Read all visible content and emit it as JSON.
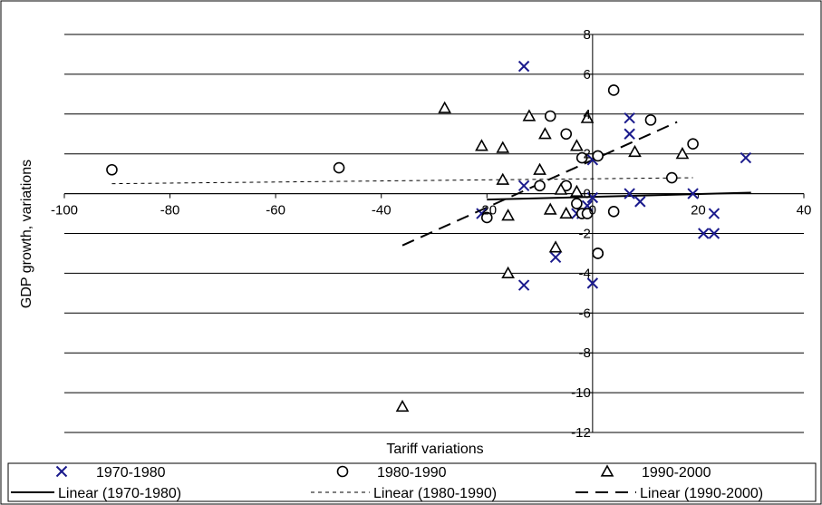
{
  "chart_data": {
    "type": "scatter",
    "xlabel": "Tariff variations",
    "ylabel": "GDP growth, variations",
    "xlim": [
      -100,
      40
    ],
    "ylim": [
      -12,
      8
    ],
    "x_ticks": [
      -100,
      -80,
      -60,
      -40,
      -20,
      0,
      20,
      40
    ],
    "y_ticks": [
      -12,
      -10,
      -8,
      -6,
      -4,
      -2,
      0,
      2,
      4,
      6,
      8
    ],
    "x_tick_labels": [
      "-100",
      "-80",
      "-60",
      "-40",
      "-20",
      "0",
      "20",
      "40"
    ],
    "y_tick_labels": [
      "-12",
      "-10",
      "-8",
      "-6",
      "-4",
      "-2",
      "0",
      "2",
      "4",
      "6",
      "8"
    ],
    "grid": "horizontal",
    "legend_position": "bottom",
    "series": [
      {
        "name": "1970-1980",
        "marker": "x",
        "color": "#1a1a8c",
        "points": [
          [
            -13,
            6.4
          ],
          [
            -13,
            0.4
          ],
          [
            -21,
            -1
          ],
          [
            -13,
            -4.6
          ],
          [
            -7,
            -3.2
          ],
          [
            -3,
            -1
          ],
          [
            -2,
            -1
          ],
          [
            -1,
            -0.6
          ],
          [
            0,
            -0.2
          ],
          [
            0,
            1.7
          ],
          [
            0,
            -4.5
          ],
          [
            7,
            3.8
          ],
          [
            7,
            3.0
          ],
          [
            7,
            0
          ],
          [
            9,
            -0.4
          ],
          [
            19,
            0
          ],
          [
            21,
            -2
          ],
          [
            23,
            -2
          ],
          [
            23,
            -1
          ],
          [
            29,
            1.8
          ]
        ]
      },
      {
        "name": "1980-1990",
        "marker": "o",
        "color": "#000000",
        "points": [
          [
            -91,
            1.2
          ],
          [
            -48,
            1.3
          ],
          [
            -20,
            -1.2
          ],
          [
            -10,
            0.4
          ],
          [
            -8,
            3.9
          ],
          [
            -5,
            3.0
          ],
          [
            -5,
            0.4
          ],
          [
            -3,
            -0.5
          ],
          [
            -2,
            1.8
          ],
          [
            -2,
            -1
          ],
          [
            -1,
            -1
          ],
          [
            1,
            1.9
          ],
          [
            1,
            -3
          ],
          [
            1,
            -3
          ],
          [
            4,
            5.2
          ],
          [
            4,
            -0.9
          ],
          [
            11,
            3.7
          ],
          [
            15,
            0.8
          ],
          [
            19,
            2.5
          ]
        ]
      },
      {
        "name": "1990-2000",
        "marker": "triangle",
        "color": "#000000",
        "points": [
          [
            -36,
            -10.7
          ],
          [
            -28,
            4.3
          ],
          [
            -21,
            2.4
          ],
          [
            -17,
            0.7
          ],
          [
            -17,
            2.3
          ],
          [
            -16,
            -1.1
          ],
          [
            -16,
            -4
          ],
          [
            -12,
            3.9
          ],
          [
            -10,
            1.2
          ],
          [
            -9,
            3.0
          ],
          [
            -8,
            -0.8
          ],
          [
            -7,
            -2.7
          ],
          [
            -6,
            0.2
          ],
          [
            -5,
            -1
          ],
          [
            -3,
            2.4
          ],
          [
            -3,
            0.1
          ],
          [
            -1,
            3.8
          ],
          [
            8,
            2.1
          ],
          [
            17,
            2.0
          ]
        ]
      }
    ],
    "trendlines": [
      {
        "name": "Linear (1970-1980)",
        "style": "solid",
        "from": [
          -20,
          -0.3
        ],
        "to": [
          30,
          0.05
        ]
      },
      {
        "name": "Linear (1980-1990)",
        "style": "dashed-short",
        "from": [
          -91,
          0.5
        ],
        "to": [
          19,
          0.8
        ]
      },
      {
        "name": "Linear (1990-2000)",
        "style": "dashed-long",
        "from": [
          -36,
          -2.6
        ],
        "to": [
          16,
          3.6
        ]
      }
    ]
  }
}
